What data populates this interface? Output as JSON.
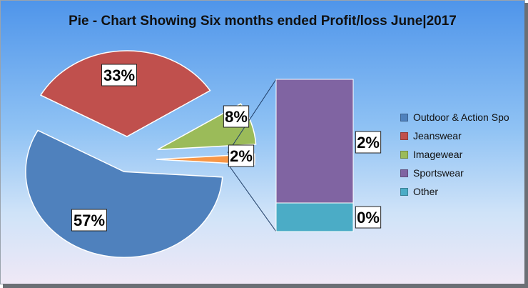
{
  "chart_data": {
    "type": "pie",
    "title": "Pie - Chart Showing Six months ended Profit/loss June|2017",
    "series": [
      {
        "name": "Outdoor & Action Spo",
        "value": 57,
        "label": "57%",
        "color": "#4f81bd"
      },
      {
        "name": "Jeanswear",
        "value": 33,
        "label": "33%",
        "color": "#c0504d"
      },
      {
        "name": "Imagewear",
        "value": 8,
        "label": "8%",
        "color": "#9bbb59"
      },
      {
        "name": "Sportswear",
        "value": 2,
        "label": "2%",
        "color": "#8064a2"
      },
      {
        "name": "Other",
        "value": 0,
        "label": "0%",
        "color": "#4bacc6"
      }
    ],
    "main_pie_other_slice": {
      "value": 2,
      "label": "2%",
      "color": "#f79646"
    },
    "bar_of_pie": [
      {
        "name": "Sportswear",
        "value": 2,
        "label": "2%",
        "color": "#8064a2"
      },
      {
        "name": "Other",
        "value": 0,
        "label": "0%",
        "color": "#4bacc6"
      }
    ],
    "legend_position": "right"
  }
}
